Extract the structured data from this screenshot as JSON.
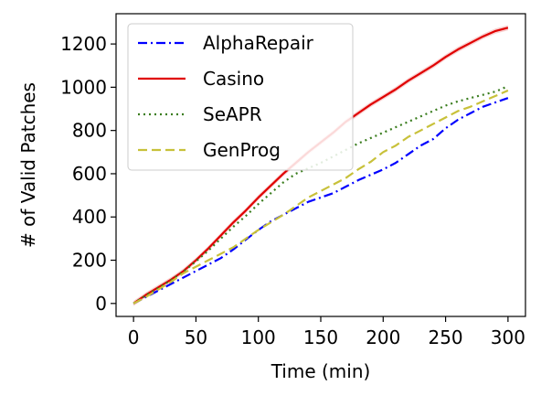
{
  "chart_data": {
    "type": "line",
    "title": "",
    "xlabel": "Time (min)",
    "ylabel": "# of Valid Patches",
    "xlim": [
      -14,
      314
    ],
    "ylim": [
      -60,
      1340
    ],
    "xticks": [
      0,
      50,
      100,
      150,
      200,
      250,
      300
    ],
    "yticks": [
      0,
      200,
      400,
      600,
      800,
      1000,
      1200
    ],
    "grid": false,
    "legend_position": "top-left",
    "series": [
      {
        "name": "AlphaRepair",
        "color": "#0000ff",
        "dash": "dashdot",
        "x": [
          0,
          10,
          20,
          30,
          40,
          50,
          60,
          70,
          80,
          90,
          100,
          110,
          120,
          130,
          140,
          150,
          160,
          170,
          180,
          190,
          200,
          210,
          220,
          230,
          240,
          250,
          260,
          270,
          280,
          290,
          300
        ],
        "y": [
          0,
          30,
          60,
          90,
          120,
          150,
          180,
          210,
          250,
          295,
          340,
          380,
          410,
          440,
          470,
          490,
          510,
          540,
          570,
          595,
          620,
          650,
          690,
          730,
          760,
          810,
          850,
          880,
          910,
          930,
          950
        ]
      },
      {
        "name": "Casino",
        "color": "#e00000",
        "dash": "solid",
        "band": 12,
        "x": [
          0,
          10,
          20,
          30,
          40,
          50,
          60,
          70,
          80,
          90,
          100,
          110,
          120,
          130,
          140,
          150,
          160,
          170,
          180,
          190,
          200,
          210,
          220,
          230,
          240,
          250,
          260,
          270,
          280,
          290,
          300
        ],
        "y": [
          0,
          40,
          75,
          110,
          150,
          200,
          255,
          315,
          375,
          430,
          490,
          545,
          600,
          650,
          700,
          745,
          790,
          840,
          880,
          920,
          955,
          990,
          1030,
          1065,
          1100,
          1140,
          1175,
          1205,
          1235,
          1260,
          1275
        ]
      },
      {
        "name": "SeAPR",
        "color": "#3a7d1e",
        "dash": "dotted",
        "x": [
          0,
          10,
          20,
          30,
          40,
          50,
          60,
          70,
          80,
          90,
          100,
          110,
          120,
          130,
          140,
          150,
          160,
          170,
          180,
          190,
          200,
          210,
          220,
          230,
          240,
          250,
          260,
          270,
          280,
          290,
          300
        ],
        "y": [
          0,
          38,
          72,
          108,
          148,
          195,
          245,
          300,
          355,
          405,
          460,
          510,
          560,
          600,
          625,
          650,
          680,
          710,
          740,
          765,
          790,
          815,
          840,
          865,
          890,
          915,
          935,
          950,
          965,
          980,
          1005
        ]
      },
      {
        "name": "GenProg",
        "color": "#c8c13a",
        "dash": "dashed",
        "x": [
          0,
          10,
          20,
          30,
          40,
          50,
          60,
          70,
          80,
          90,
          100,
          110,
          120,
          130,
          140,
          150,
          160,
          170,
          180,
          190,
          200,
          210,
          220,
          230,
          240,
          250,
          260,
          270,
          280,
          290,
          300
        ],
        "y": [
          0,
          30,
          65,
          100,
          140,
          170,
          200,
          230,
          260,
          300,
          340,
          375,
          410,
          450,
          490,
          520,
          550,
          580,
          620,
          655,
          700,
          730,
          770,
          800,
          830,
          860,
          890,
          910,
          935,
          960,
          985
        ]
      }
    ]
  }
}
